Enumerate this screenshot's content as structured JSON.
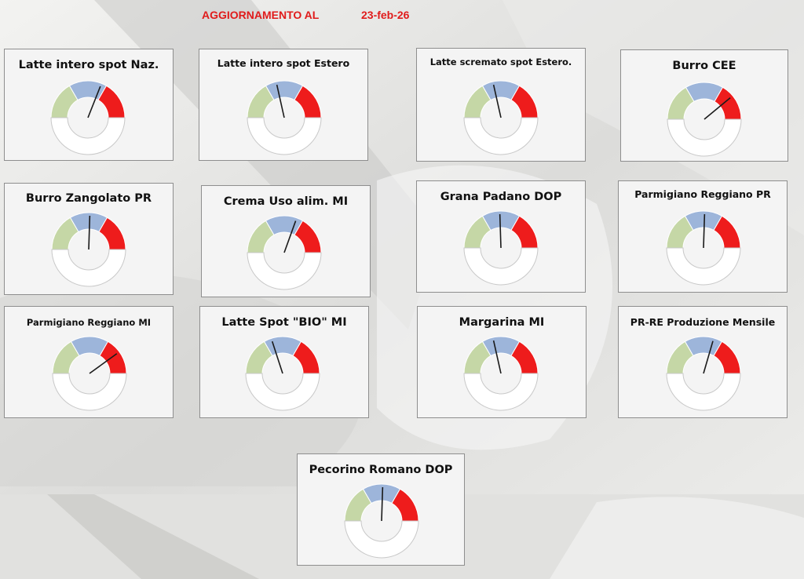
{
  "header": {
    "label": "AGGIORNAMENTO AL",
    "date": "23-feb-26"
  },
  "colors": {
    "green": "#c5d7a6",
    "blue": "#9db5da",
    "red": "#ee1c1c",
    "needle": "#1a1a1a",
    "title": "#e01b1b"
  },
  "chart_data": [
    {
      "type": "gauge",
      "title": "Latte intero spot Naz.",
      "value": 0.62
    },
    {
      "type": "gauge",
      "title": "Latte intero spot Estero",
      "value": 0.43
    },
    {
      "type": "gauge",
      "title": "Latte scremato spot Estero.",
      "value": 0.43
    },
    {
      "type": "gauge",
      "title": "Burro CEE",
      "value": 0.78
    },
    {
      "type": "gauge",
      "title": "Burro Zangolato PR",
      "value": 0.51
    },
    {
      "type": "gauge",
      "title": "Crema Uso alim. MI",
      "value": 0.61
    },
    {
      "type": "gauge",
      "title": "Grana Padano DOP",
      "value": 0.49
    },
    {
      "type": "gauge",
      "title": "Parmigiano Reggiano PR",
      "value": 0.51
    },
    {
      "type": "gauge",
      "title": "Parmigiano Reggiano MI",
      "value": 0.8
    },
    {
      "type": "gauge",
      "title": "Latte Spot \"BIO\" MI",
      "value": 0.4
    },
    {
      "type": "gauge",
      "title": "Margarina MI",
      "value": 0.43
    },
    {
      "type": "gauge",
      "title": "PR-RE Produzione Mensile",
      "value": 0.59
    },
    {
      "type": "gauge",
      "title": "Pecorino Romano DOP",
      "value": 0.51
    }
  ]
}
